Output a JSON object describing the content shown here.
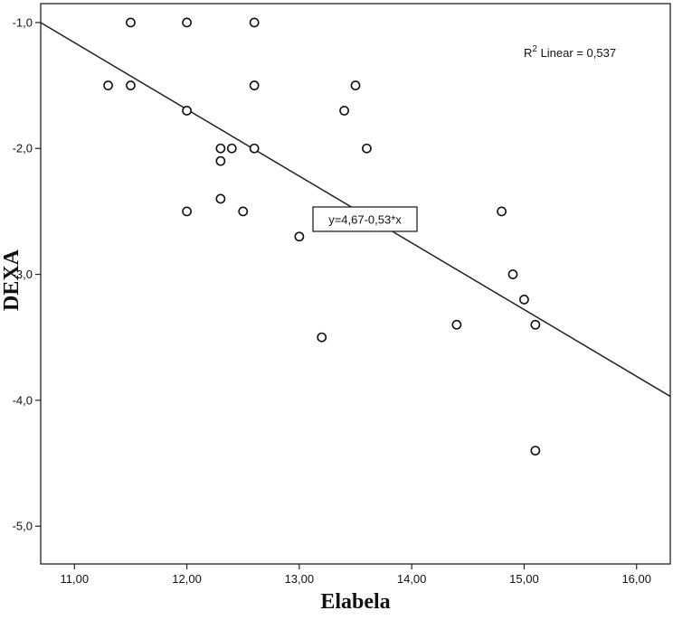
{
  "chart_data": {
    "type": "scatter",
    "title": "",
    "xlabel": "Elabela",
    "ylabel": "DEXA",
    "xlim": [
      10.7,
      16.3
    ],
    "ylim": [
      -5.3,
      -0.85
    ],
    "xticks": [
      11,
      12,
      13,
      14,
      15,
      16
    ],
    "xtick_labels": [
      "11,00",
      "12,00",
      "13,00",
      "14,00",
      "15,00",
      "16,00"
    ],
    "yticks": [
      -1,
      -2,
      -3,
      -4,
      -5
    ],
    "ytick_labels": [
      "-1,0",
      "-2,0",
      "-3,0",
      "-4,0",
      "-5,0"
    ],
    "grid": false,
    "points": [
      {
        "x": 11.3,
        "y": -1.5
      },
      {
        "x": 11.5,
        "y": -1.0
      },
      {
        "x": 11.5,
        "y": -1.5
      },
      {
        "x": 12.0,
        "y": -1.0
      },
      {
        "x": 12.0,
        "y": -1.7
      },
      {
        "x": 12.0,
        "y": -2.5
      },
      {
        "x": 12.3,
        "y": -2.0
      },
      {
        "x": 12.3,
        "y": -2.1
      },
      {
        "x": 12.3,
        "y": -2.4
      },
      {
        "x": 12.4,
        "y": -2.0
      },
      {
        "x": 12.5,
        "y": -2.5
      },
      {
        "x": 12.6,
        "y": -1.0
      },
      {
        "x": 12.6,
        "y": -1.5
      },
      {
        "x": 12.6,
        "y": -2.0
      },
      {
        "x": 13.0,
        "y": -2.7
      },
      {
        "x": 13.2,
        "y": -3.5
      },
      {
        "x": 13.4,
        "y": -1.7
      },
      {
        "x": 13.5,
        "y": -1.5
      },
      {
        "x": 13.6,
        "y": -2.0
      },
      {
        "x": 14.4,
        "y": -3.4
      },
      {
        "x": 14.8,
        "y": -2.5
      },
      {
        "x": 14.9,
        "y": -3.0
      },
      {
        "x": 15.0,
        "y": -3.2
      },
      {
        "x": 15.1,
        "y": -3.4
      },
      {
        "x": 15.1,
        "y": -4.4
      }
    ],
    "fit_line": {
      "intercept": 4.67,
      "slope": -0.53
    },
    "fit_label": "y=4,67-0,53*x",
    "r2_prefix": "R",
    "r2_sup": "2",
    "r2_suffix": " Linear = 0,537"
  }
}
